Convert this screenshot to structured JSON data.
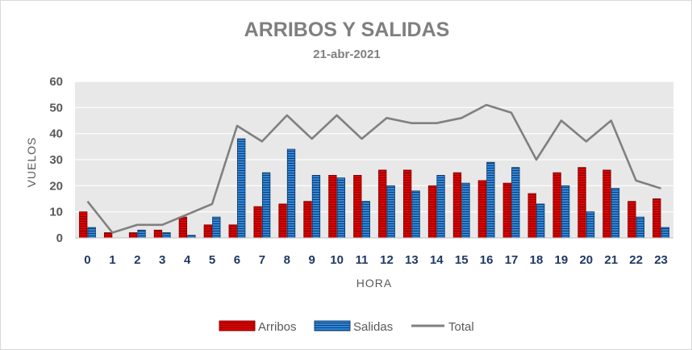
{
  "chart_data": {
    "type": "bar",
    "title": "ARRIBOS  Y SALIDAS",
    "subtitle": "21-abr-2021",
    "xlabel": "HORA",
    "ylabel": "VUELOS",
    "ylim": [
      0,
      60
    ],
    "yticks": [
      0,
      10,
      20,
      30,
      40,
      50,
      60
    ],
    "grid": true,
    "legend_position": "bottom",
    "categories": [
      "0",
      "1",
      "2",
      "3",
      "4",
      "5",
      "6",
      "7",
      "8",
      "9",
      "10",
      "11",
      "12",
      "13",
      "14",
      "15",
      "16",
      "17",
      "18",
      "19",
      "20",
      "21",
      "22",
      "23"
    ],
    "series": [
      {
        "name": "Arribos",
        "type": "bar",
        "color": "#c00000",
        "values": [
          10,
          2,
          2,
          3,
          8,
          5,
          5,
          12,
          13,
          14,
          24,
          24,
          26,
          26,
          20,
          25,
          22,
          21,
          17,
          25,
          27,
          26,
          14,
          15
        ]
      },
      {
        "name": "Salidas",
        "type": "bar",
        "color": "#2e75b6",
        "values": [
          4,
          0,
          3,
          2,
          1,
          8,
          38,
          25,
          34,
          24,
          23,
          14,
          20,
          18,
          24,
          21,
          29,
          27,
          13,
          20,
          10,
          19,
          8,
          4
        ]
      },
      {
        "name": "Total",
        "type": "line",
        "color": "#808080",
        "values": [
          14,
          2,
          5,
          5,
          9,
          13,
          43,
          37,
          47,
          38,
          47,
          38,
          46,
          44,
          44,
          46,
          51,
          48,
          30,
          45,
          37,
          45,
          22,
          19
        ]
      }
    ]
  }
}
